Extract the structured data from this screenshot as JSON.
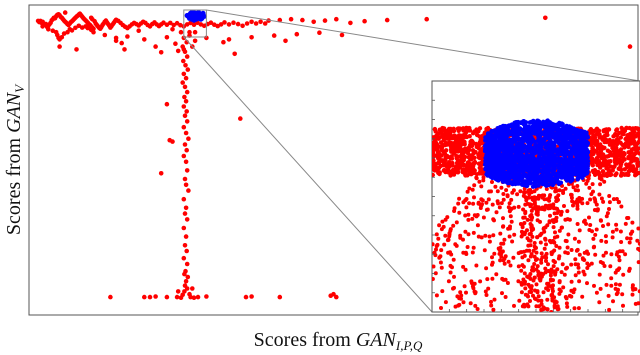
{
  "chart_data": {
    "type": "scatter",
    "title": "",
    "xlabel_prefix": "Scores from ",
    "xlabel_symbol": "GAN",
    "xlabel_subscript": "I,P,Q",
    "ylabel_prefix": "Scores from ",
    "ylabel_symbol": "GAN",
    "ylabel_subscript": "V",
    "grid": false,
    "legend": "none",
    "inset": true,
    "colors": {
      "red": "#ff0000",
      "blue": "#0000ff",
      "frame": "#888888"
    },
    "series": [
      {
        "color": "red",
        "points": [
          [
            0.02,
            0.969
          ],
          [
            0.04,
            0.965
          ],
          [
            0.06,
            0.969
          ],
          [
            0.08,
            0.962
          ],
          [
            0.1,
            0.966
          ],
          [
            0.12,
            0.96
          ],
          [
            0.14,
            0.956
          ],
          [
            0.16,
            0.958
          ],
          [
            0.18,
            0.948
          ],
          [
            0.2,
            0.952
          ],
          [
            0.22,
            0.957
          ],
          [
            0.24,
            0.962
          ],
          [
            0.26,
            0.971
          ],
          [
            0.28,
            0.975
          ],
          [
            0.3,
            0.98
          ],
          [
            0.32,
            0.978
          ],
          [
            0.34,
            0.985
          ],
          [
            0.36,
            0.99
          ],
          [
            0.38,
            0.992
          ],
          [
            0.4,
            0.989
          ],
          [
            0.42,
            0.983
          ],
          [
            0.44,
            0.98
          ],
          [
            0.46,
            0.975
          ],
          [
            0.48,
            0.97
          ],
          [
            0.5,
            0.966
          ],
          [
            0.52,
            0.962
          ],
          [
            0.54,
            0.958
          ],
          [
            0.56,
            0.955
          ],
          [
            0.58,
            0.96
          ],
          [
            0.6,
            0.965
          ],
          [
            0.62,
            0.968
          ],
          [
            0.64,
            0.972
          ],
          [
            0.66,
            0.976
          ],
          [
            0.68,
            0.98
          ],
          [
            0.7,
            0.984
          ],
          [
            0.72,
            0.987
          ],
          [
            0.74,
            0.991
          ],
          [
            0.76,
            0.994
          ],
          [
            0.78,
            0.989
          ],
          [
            0.8,
            0.984
          ],
          [
            0.82,
            0.979
          ],
          [
            0.84,
            0.975
          ],
          [
            0.86,
            0.971
          ],
          [
            0.88,
            0.967
          ],
          [
            0.9,
            0.963
          ],
          [
            0.92,
            0.958
          ],
          [
            0.94,
            0.955
          ],
          [
            0.96,
            0.95
          ],
          [
            0.98,
            0.946
          ],
          [
            1.0,
            0.942
          ],
          [
            0.1,
            0.95
          ],
          [
            0.2,
            0.94
          ],
          [
            0.28,
            0.935
          ],
          [
            0.34,
            0.93
          ],
          [
            0.36,
            0.92
          ],
          [
            0.38,
            0.91
          ],
          [
            0.4,
            0.905
          ],
          [
            0.44,
            0.912
          ],
          [
            0.48,
            0.925
          ],
          [
            0.54,
            0.93
          ],
          [
            0.58,
            0.94
          ],
          [
            0.62,
            0.936
          ],
          [
            0.68,
            0.945
          ],
          [
            0.74,
            0.952
          ],
          [
            0.8,
            0.946
          ],
          [
            0.86,
            0.95
          ],
          [
            0.9,
            0.944
          ],
          [
            0.96,
            0.938
          ],
          [
            1.0,
            0.93
          ],
          [
            0.5,
            0.998
          ],
          [
            0.96,
            0.98
          ],
          [
            0.98,
            0.975
          ],
          [
            1.02,
            0.968
          ],
          [
            1.04,
            0.96
          ],
          [
            1.06,
            0.955
          ],
          [
            1.08,
            0.95
          ],
          [
            1.1,
            0.945
          ],
          [
            1.12,
            0.942
          ],
          [
            1.14,
            0.948
          ],
          [
            1.16,
            0.955
          ],
          [
            1.18,
            0.96
          ],
          [
            1.2,
            0.966
          ],
          [
            1.22,
            0.97
          ],
          [
            1.24,
            0.964
          ],
          [
            1.26,
            0.958
          ],
          [
            1.28,
            0.952
          ],
          [
            1.3,
            0.946
          ],
          [
            1.32,
            0.951
          ],
          [
            1.34,
            0.957
          ],
          [
            1.36,
            0.962
          ],
          [
            1.38,
            0.968
          ],
          [
            1.4,
            0.973
          ],
          [
            1.44,
            0.969
          ],
          [
            1.48,
            0.962
          ],
          [
            1.52,
            0.955
          ],
          [
            1.56,
            0.949
          ],
          [
            1.6,
            0.944
          ],
          [
            1.64,
            0.95
          ],
          [
            1.68,
            0.957
          ],
          [
            1.72,
            0.962
          ],
          [
            1.76,
            0.958
          ],
          [
            1.8,
            0.953
          ],
          [
            1.84,
            0.96
          ],
          [
            1.88,
            0.966
          ],
          [
            1.92,
            0.962
          ],
          [
            1.96,
            0.955
          ],
          [
            2.0,
            0.95
          ],
          [
            2.04,
            0.958
          ],
          [
            2.08,
            0.964
          ],
          [
            2.12,
            0.957
          ],
          [
            2.16,
            0.951
          ],
          [
            2.2,
            0.957
          ],
          [
            2.24,
            0.963
          ],
          [
            2.3,
            0.956
          ],
          [
            2.36,
            0.962
          ],
          [
            2.42,
            0.955
          ],
          [
            2.48,
            0.961
          ],
          [
            2.54,
            0.954
          ],
          [
            2.6,
            0.95
          ],
          [
            2.66,
            0.957
          ],
          [
            2.72,
            0.962
          ],
          [
            2.78,
            0.956
          ],
          [
            2.84,
            0.963
          ],
          [
            2.9,
            0.957
          ],
          [
            2.96,
            0.952
          ],
          [
            3.02,
            0.958
          ],
          [
            3.08,
            0.963
          ],
          [
            3.14,
            0.956
          ],
          [
            3.2,
            0.951
          ],
          [
            3.26,
            0.957
          ],
          [
            3.32,
            0.964
          ],
          [
            3.4,
            0.957
          ],
          [
            3.48,
            0.963
          ],
          [
            3.56,
            0.958
          ],
          [
            3.64,
            0.952
          ],
          [
            3.72,
            0.96
          ],
          [
            3.8,
            0.966
          ],
          [
            3.88,
            0.96
          ],
          [
            3.96,
            0.966
          ],
          [
            4.04,
            0.96
          ],
          [
            4.1,
            0.97
          ],
          [
            4.3,
            0.972
          ],
          [
            4.5,
            0.975
          ],
          [
            4.7,
            0.972
          ],
          [
            4.9,
            0.966
          ],
          [
            5.1,
            0.97
          ],
          [
            5.3,
            0.975
          ],
          [
            5.55,
            0.962
          ],
          [
            5.8,
            0.968
          ],
          [
            6.2,
            0.972
          ],
          [
            1.2,
            0.92
          ],
          [
            1.4,
            0.91
          ],
          [
            1.6,
            0.915
          ],
          [
            1.9,
            0.905
          ],
          [
            2.3,
            0.912
          ],
          [
            2.7,
            0.918
          ],
          [
            3.0,
            0.91
          ],
          [
            3.4,
            0.905
          ],
          [
            3.8,
            0.912
          ],
          [
            4.2,
            0.918
          ],
          [
            4.6,
            0.923
          ],
          [
            5.0,
            0.928
          ],
          [
            5.4,
            0.92
          ],
          [
            0.4,
            0.88
          ],
          [
            0.7,
            0.87
          ],
          [
            1.5,
            0.892
          ],
          [
            2.1,
            0.88
          ],
          [
            2.6,
            0.87
          ],
          [
            3.3,
            0.895
          ],
          [
            4.4,
            0.9
          ],
          [
            6.9,
            0.975
          ],
          [
            9.0,
            0.98
          ],
          [
            10.5,
            0.88
          ],
          [
            1.4,
            0.9
          ],
          [
            1.55,
            0.87
          ],
          [
            2.2,
            0.86
          ],
          [
            3.5,
            0.855
          ],
          [
            2.8,
            0.93
          ],
          [
            1.8,
            0.935
          ],
          [
            2.4,
            0.94
          ],
          [
            2.55,
            0.93
          ],
          [
            2.6,
            0.91
          ],
          [
            2.65,
            0.895
          ],
          [
            2.58,
            0.88
          ],
          [
            2.62,
            0.862
          ],
          [
            2.66,
            0.845
          ],
          [
            2.59,
            0.83
          ],
          [
            2.63,
            0.815
          ],
          [
            2.67,
            0.8
          ],
          [
            2.6,
            0.785
          ],
          [
            2.64,
            0.77
          ],
          [
            2.58,
            0.755
          ],
          [
            2.62,
            0.74
          ],
          [
            2.66,
            0.722
          ],
          [
            2.61,
            0.705
          ],
          [
            2.64,
            0.69
          ],
          [
            2.6,
            0.672
          ],
          [
            2.65,
            0.655
          ],
          [
            2.62,
            0.64
          ],
          [
            2.66,
            0.62
          ],
          [
            2.6,
            0.6
          ],
          [
            2.64,
            0.58
          ],
          [
            2.68,
            0.56
          ],
          [
            2.62,
            0.54
          ],
          [
            2.65,
            0.52
          ],
          [
            2.6,
            0.5
          ],
          [
            2.64,
            0.48
          ],
          [
            2.66,
            0.45
          ],
          [
            2.62,
            0.42
          ],
          [
            2.64,
            0.4
          ],
          [
            2.68,
            0.38
          ],
          [
            2.6,
            0.35
          ],
          [
            2.64,
            0.32
          ],
          [
            2.62,
            0.3
          ],
          [
            2.66,
            0.28
          ],
          [
            2.6,
            0.25
          ],
          [
            2.64,
            0.22
          ],
          [
            2.62,
            0.19
          ],
          [
            2.65,
            0.17
          ],
          [
            2.6,
            0.145
          ],
          [
            2.66,
            0.125
          ],
          [
            2.63,
            0.1
          ],
          [
            2.61,
            0.09
          ],
          [
            2.67,
            0.08
          ],
          [
            2.64,
            0.065
          ],
          [
            2.62,
            0.05
          ],
          [
            2.66,
            0.04
          ],
          [
            2.61,
            0.03
          ],
          [
            2.7,
            0.02
          ],
          [
            2.75,
            0.04
          ],
          [
            2.5,
            0.03
          ],
          [
            2.58,
            0.018
          ],
          [
            2.72,
            0.01
          ],
          [
            2.55,
            0.008
          ],
          [
            2.78,
            0.008
          ],
          [
            2.48,
            0.01
          ],
          [
            2.85,
            0.01
          ],
          [
            2.3,
            0.68
          ],
          [
            2.2,
            0.44
          ],
          [
            2.4,
            0.55
          ],
          [
            2.7,
            0.93
          ],
          [
            2.8,
            0.9
          ],
          [
            2.75,
            0.88
          ],
          [
            2.5,
            0.865
          ],
          [
            2.45,
            0.89
          ],
          [
            1.9,
            0.01
          ],
          [
            2.0,
            0.01
          ],
          [
            2.1,
            0.012
          ],
          [
            2.3,
            0.01
          ],
          [
            3.0,
            0.012
          ],
          [
            3.7,
            0.01
          ],
          [
            3.8,
            0.012
          ],
          [
            4.3,
            0.01
          ],
          [
            5.2,
            0.015
          ],
          [
            5.3,
            0.01
          ],
          [
            5.25,
            0.02
          ],
          [
            1.3,
            0.01
          ],
          [
            3.6,
            0.63
          ],
          [
            2.35,
            0.555
          ],
          [
            0.0,
            0.0
          ]
        ]
      },
      {
        "color": "blue",
        "points": [
          [
            2.68,
            0.985
          ],
          [
            2.7,
            0.99
          ],
          [
            2.72,
            0.995
          ],
          [
            2.74,
            0.998
          ],
          [
            2.76,
            0.992
          ],
          [
            2.78,
            0.987
          ],
          [
            2.8,
            0.982
          ],
          [
            2.82,
            0.99
          ],
          [
            2.84,
            0.996
          ],
          [
            2.86,
            0.993
          ],
          [
            2.88,
            0.987
          ],
          [
            2.9,
            0.982
          ],
          [
            2.92,
            0.989
          ],
          [
            2.94,
            0.995
          ],
          [
            2.7,
            0.978
          ],
          [
            2.74,
            0.975
          ],
          [
            2.78,
            0.972
          ],
          [
            2.82,
            0.975
          ],
          [
            2.86,
            0.978
          ],
          [
            2.9,
            0.975
          ],
          [
            2.72,
            0.982
          ],
          [
            2.76,
            0.985
          ],
          [
            2.8,
            0.992
          ],
          [
            2.84,
            0.984
          ],
          [
            2.88,
            0.98
          ],
          [
            2.92,
            0.978
          ],
          [
            2.96,
            0.985
          ],
          [
            2.66,
            0.988
          ],
          [
            2.78,
            0.998
          ],
          [
            2.86,
            0.999
          ]
        ]
      }
    ],
    "inset_view": {
      "source_x": [
        2.6,
        3.0
      ],
      "source_y": [
        0.92,
        1.0
      ],
      "points_red_count_hint": "dense",
      "note_free": ""
    }
  }
}
